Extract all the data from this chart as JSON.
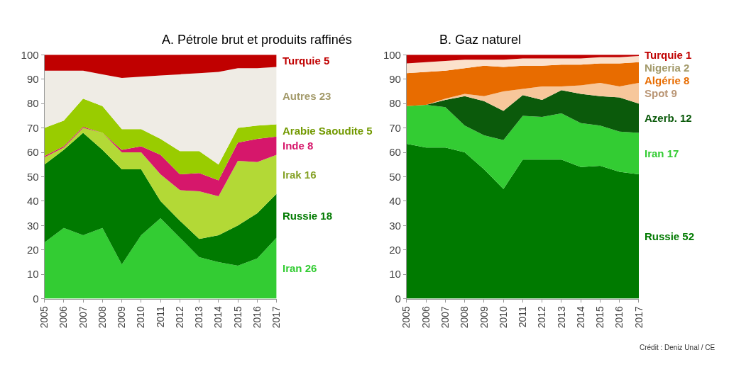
{
  "chart_data": [
    {
      "type": "area",
      "stacked": true,
      "title": "A. Pétrole brut et produits raffinés",
      "x": [
        2005,
        2006,
        2007,
        2008,
        2009,
        2010,
        2011,
        2012,
        2013,
        2014,
        2015,
        2016,
        2017
      ],
      "xlim": [
        2005,
        2017
      ],
      "xticks": [
        2005,
        2006,
        2007,
        2008,
        2009,
        2010,
        2011,
        2012,
        2013,
        2014,
        2015,
        2016,
        2017
      ],
      "ylim": [
        0,
        100
      ],
      "yticks": [
        0,
        10,
        20,
        30,
        40,
        50,
        60,
        70,
        80,
        90,
        100
      ],
      "legend": false,
      "series": [
        {
          "name": "Iran 26",
          "color": "#33cc33",
          "values": [
            23,
            29,
            26,
            29,
            14,
            26,
            33,
            25,
            17,
            15,
            13.5,
            16.5,
            25
          ]
        },
        {
          "name": "Russie 18",
          "color": "#007a00",
          "values": [
            32,
            32,
            42,
            32,
            39,
            27,
            7,
            7,
            7.5,
            11,
            16.5,
            18.5,
            18
          ]
        },
        {
          "name": "Irak 16",
          "color": "#b3d936",
          "values": [
            3,
            1,
            2,
            7,
            7,
            7,
            11,
            12.5,
            19.5,
            16,
            26.5,
            21,
            16
          ]
        },
        {
          "name": "Inde 8",
          "color": "#d6176b",
          "values": [
            0.5,
            0.5,
            0.5,
            0,
            1,
            2.5,
            8,
            6.5,
            7.5,
            6.5,
            7.5,
            9.5,
            7.5
          ]
        },
        {
          "name": "Arabie Saoudite 5",
          "color": "#99cc00",
          "values": [
            11.5,
            10.5,
            11.5,
            11,
            8.5,
            7,
            6.5,
            9.5,
            9,
            6.5,
            6,
            5.5,
            5
          ]
        },
        {
          "name": "Autres 23",
          "color": "#efece5",
          "values": [
            23.5,
            20.5,
            11.5,
            13,
            21,
            21.5,
            26,
            31.5,
            32,
            38,
            24.5,
            23.5,
            23.5
          ]
        },
        {
          "name": "Turquie 5",
          "color": "#c00000",
          "values": [
            6.5,
            6.5,
            6.5,
            8,
            9.5,
            9,
            8.5,
            8,
            7.5,
            7,
            5.5,
            5.5,
            5
          ]
        }
      ]
    },
    {
      "type": "area",
      "stacked": true,
      "title": "B. Gaz naturel",
      "x": [
        2005,
        2006,
        2007,
        2008,
        2009,
        2010,
        2011,
        2012,
        2013,
        2014,
        2015,
        2016,
        2017
      ],
      "xlim": [
        2005,
        2017
      ],
      "xticks": [
        2005,
        2006,
        2007,
        2008,
        2009,
        2010,
        2011,
        2012,
        2013,
        2014,
        2015,
        2016,
        2017
      ],
      "ylim": [
        0,
        100
      ],
      "yticks": [
        0,
        10,
        20,
        30,
        40,
        50,
        60,
        70,
        80,
        90,
        100
      ],
      "legend": false,
      "annotations": [
        "Crédit : Deniz Unal / CE"
      ],
      "series": [
        {
          "name": "Russie 52",
          "color": "#007a00",
          "values": [
            63.5,
            62,
            62,
            60,
            53,
            45,
            57,
            57,
            57,
            54,
            54.5,
            52,
            51
          ]
        },
        {
          "name": "Iran 17",
          "color": "#33cc33",
          "values": [
            15.5,
            17.5,
            16.5,
            11,
            14,
            20,
            18,
            17.5,
            19,
            18,
            16.5,
            16.5,
            17
          ]
        },
        {
          "name": "Azerb. 12",
          "color": "#0b5a0b",
          "values": [
            0,
            0,
            3,
            12,
            14,
            12,
            8.5,
            7,
            9.5,
            12,
            12,
            14,
            12
          ]
        },
        {
          "name": "Spot 9",
          "color": "#f7c79b",
          "values": [
            0,
            0,
            0.5,
            1,
            2,
            8,
            2.5,
            5.5,
            1.5,
            3.5,
            5.5,
            4.5,
            8.5
          ]
        },
        {
          "name": "Algérie 8",
          "color": "#e86c00",
          "values": [
            13.5,
            13.5,
            11.5,
            10.5,
            12.5,
            10,
            9.5,
            8.5,
            9,
            8.5,
            8,
            9.5,
            8.5
          ]
        },
        {
          "name": "Nigeria 2",
          "color": "#fbe1cc",
          "values": [
            4,
            4,
            4,
            3.5,
            2.5,
            3,
            3,
            3,
            2.5,
            2.5,
            2.5,
            2.5,
            2.5
          ]
        },
        {
          "name": "Turquie 1",
          "color": "#c00000",
          "values": [
            3.5,
            3,
            2.5,
            2,
            2,
            2,
            1.5,
            1.5,
            1.5,
            1.5,
            1,
            1,
            0.5
          ]
        }
      ]
    }
  ]
}
